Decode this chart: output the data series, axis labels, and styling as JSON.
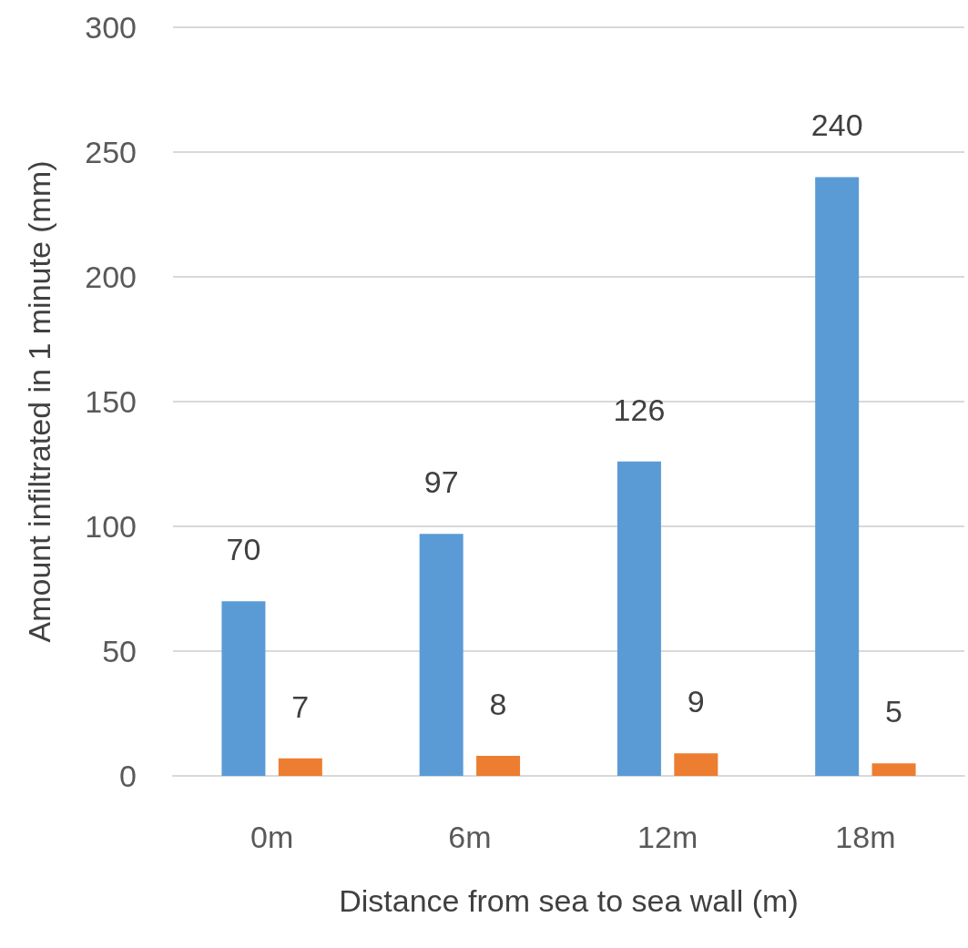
{
  "chart_data": {
    "type": "bar",
    "xlabel": "Distance from sea to sea wall (m)",
    "ylabel": "Amount infiltrated in 1 minute (mm)",
    "categories": [
      "0m",
      "6m",
      "12m",
      "18m"
    ],
    "series": [
      {
        "color": "#5b9bd5",
        "values": [
          70,
          97,
          126,
          240
        ]
      },
      {
        "color": "#ed7d31",
        "values": [
          7,
          8,
          9,
          5
        ]
      }
    ],
    "ylim": [
      0,
      300
    ],
    "yticks": [
      0,
      50,
      100,
      150,
      200,
      250,
      300
    ],
    "grid": "y",
    "data_labels": true
  }
}
